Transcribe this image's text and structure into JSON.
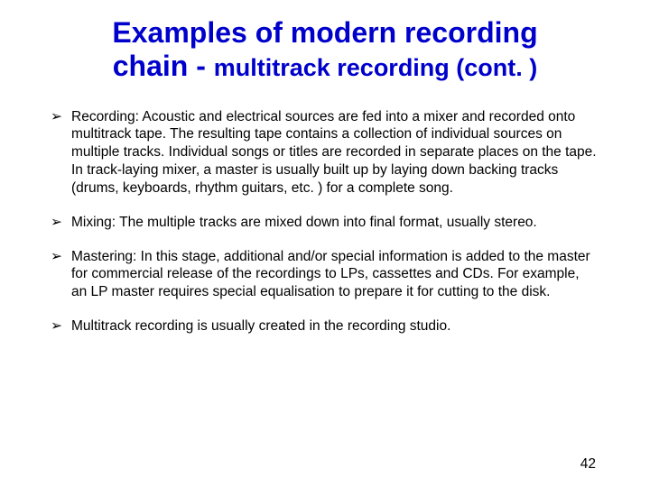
{
  "title": {
    "line1": "Examples of modern recording",
    "line2_a": "chain - ",
    "line2_b": "multitrack recording (cont. )"
  },
  "bullets": [
    "Recording: Acoustic and electrical sources are fed into a mixer and recorded onto multitrack tape. The resulting tape contains a collection of individual sources on multiple tracks. Individual songs or titles are recorded in separate places on the tape. In track-laying mixer, a master is usually built up by laying down backing tracks (drums, keyboards, rhythm guitars, etc. ) for a complete song.",
    "Mixing: The multiple tracks are mixed down into final format, usually stereo.",
    "Mastering: In this stage, additional and/or special information is added to the master for commercial release of the recordings to LPs, cassettes and CDs. For example, an LP master requires special equalisation to prepare it for cutting to the disk.",
    "Multitrack recording is usually created in the recording studio."
  ],
  "bullet_glyph": "➢",
  "page_number": "42",
  "colors": {
    "title": "#0000cc",
    "text": "#000000",
    "background": "#ffffff"
  }
}
